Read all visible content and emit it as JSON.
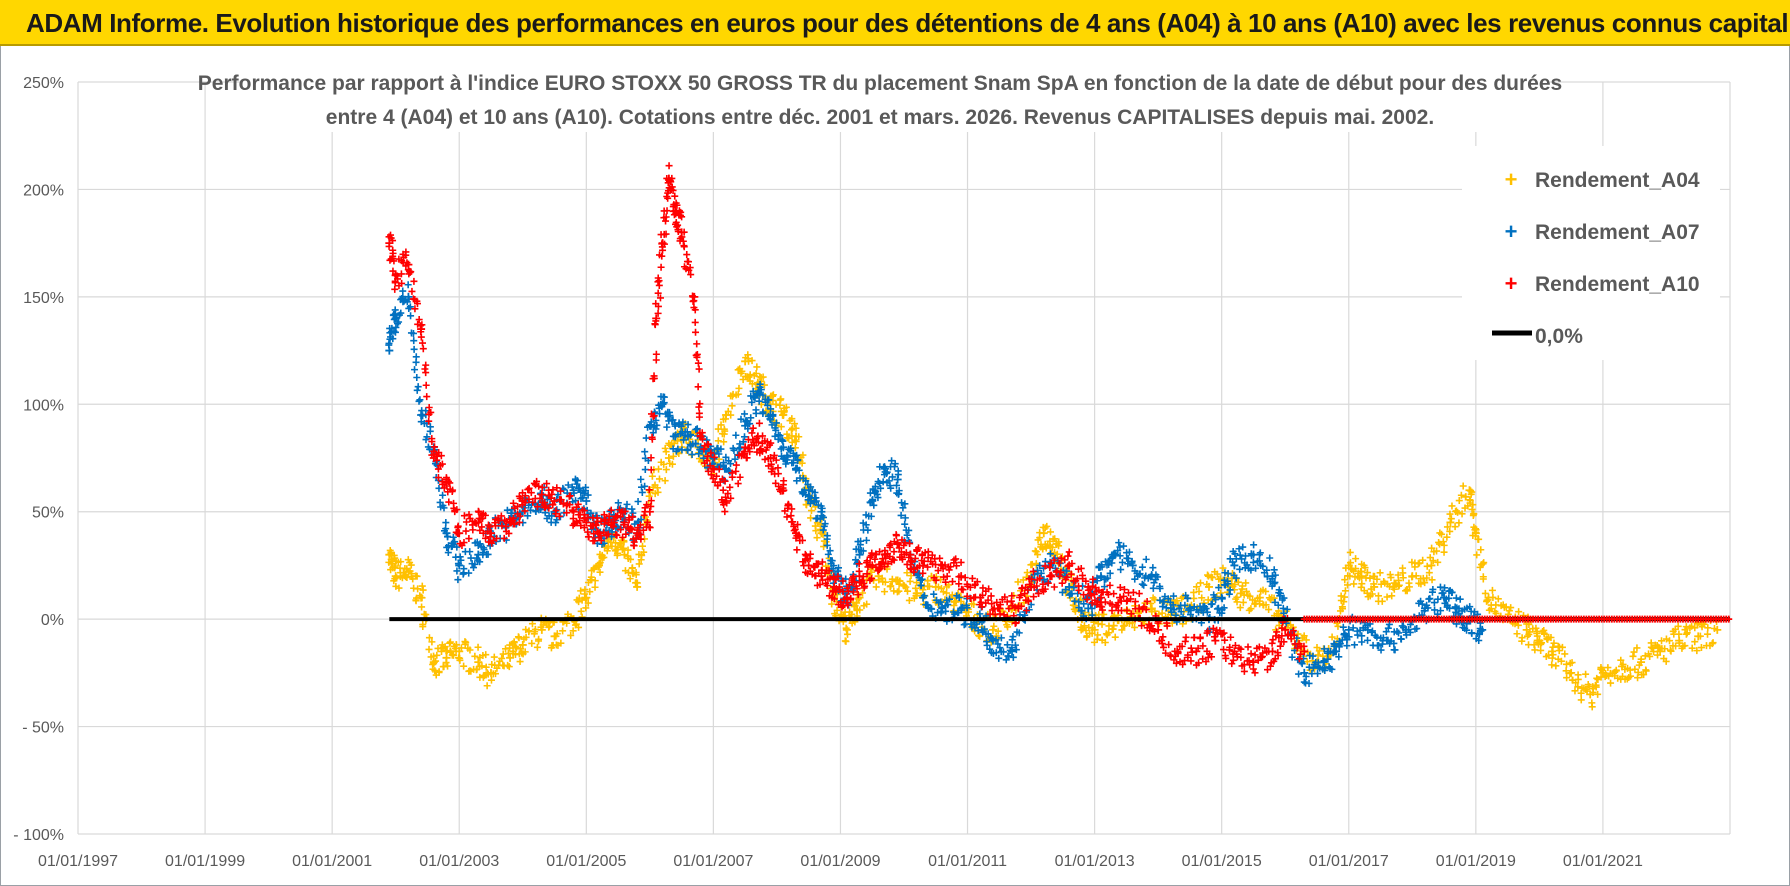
{
  "banner": {
    "title": "ADAM Informe. Evolution historique des performances en euros pour des détentions de 4 ans (A04) à 10 ans (A10) avec les revenus connus capitalisés"
  },
  "colors": {
    "banner": "#ffd700",
    "A04": "#ffc000",
    "A07": "#0070c0",
    "A10": "#ff0000",
    "zero": "#000000",
    "grid": "#d9d9d9",
    "text": "#595959"
  },
  "chart_data": {
    "type": "scatter",
    "title_lines": [
      "Performance par rapport à l'indice EURO STOXX 50 GROSS TR  du placement Snam SpA en fonction de la date de début pour des durées",
      "entre 4 (A04) et 10 ans (A10).  Cotations entre déc. 2001 et mars. 2026. Revenus CAPITALISES depuis mai. 2002."
    ],
    "xlabel": "",
    "ylabel": "",
    "xlim": [
      1997.0,
      2023.0
    ],
    "ylim": [
      -100,
      250
    ],
    "x_ticks": [
      1997,
      1999,
      2001,
      2003,
      2005,
      2007,
      2009,
      2011,
      2013,
      2015,
      2017,
      2019,
      2021
    ],
    "x_tick_labels": [
      "01/01/1997",
      "01/01/1999",
      "01/01/2001",
      "01/01/2003",
      "01/01/2005",
      "01/01/2007",
      "01/01/2009",
      "01/01/2011",
      "01/01/2013",
      "01/01/2015",
      "01/01/2017",
      "01/01/2019",
      "01/01/2021"
    ],
    "y_ticks": [
      -100,
      -50,
      0,
      50,
      100,
      150,
      200,
      250
    ],
    "y_tick_labels": [
      "- 100%",
      "- 50%",
      "0%",
      "50%",
      "100%",
      "150%",
      "200%",
      "250%"
    ],
    "grid": true,
    "legend_position": "top-right",
    "series": [
      {
        "name": "Rendement_A04",
        "marker": "+",
        "x": [
          2001.9,
          2002.0,
          2002.2,
          2002.4,
          2002.6,
          2002.8,
          2003.0,
          2003.3,
          2003.5,
          2003.8,
          2004.0,
          2004.3,
          2004.5,
          2004.8,
          2005.0,
          2005.2,
          2005.4,
          2005.6,
          2005.8,
          2006.0,
          2006.3,
          2006.5,
          2006.8,
          2007.0,
          2007.2,
          2007.5,
          2007.7,
          2007.9,
          2008.1,
          2008.3,
          2008.5,
          2008.7,
          2008.9,
          2009.1,
          2009.3,
          2009.6,
          2009.9,
          2010.2,
          2010.5,
          2010.8,
          2011.1,
          2011.4,
          2011.7,
          2012.0,
          2012.2,
          2012.4,
          2012.6,
          2012.8,
          2013.0,
          2013.3,
          2013.6,
          2013.9,
          2014.2,
          2014.5,
          2014.8,
          2015.1,
          2015.3,
          2015.6,
          2015.9,
          2016.2,
          2016.5,
          2016.8,
          2017.0,
          2017.2,
          2017.4,
          2017.7,
          2018.0,
          2018.3,
          2018.6,
          2018.9,
          2019.0,
          2019.2,
          2019.5,
          2019.8,
          2020.0,
          2020.2,
          2020.5,
          2020.8,
          2021.0,
          2021.3,
          2021.6,
          2021.9,
          2022.2,
          2022.5,
          2022.8
        ],
        "y": [
          30,
          20,
          22,
          10,
          -20,
          -18,
          -15,
          -20,
          -25,
          -18,
          -12,
          -5,
          -8,
          0,
          10,
          25,
          40,
          30,
          15,
          60,
          75,
          85,
          80,
          70,
          95,
          120,
          110,
          100,
          95,
          85,
          55,
          40,
          10,
          -5,
          10,
          20,
          18,
          12,
          15,
          8,
          0,
          -5,
          5,
          20,
          40,
          35,
          15,
          0,
          -5,
          -3,
          0,
          5,
          2,
          5,
          15,
          18,
          12,
          10,
          0,
          -10,
          -20,
          -12,
          25,
          20,
          15,
          15,
          20,
          25,
          45,
          60,
          40,
          10,
          0,
          -5,
          -10,
          -15,
          -25,
          -35,
          -25,
          -22,
          -20,
          -15,
          -10,
          -8,
          -5
        ]
      },
      {
        "name": "Rendement_A07",
        "marker": "+",
        "x": [
          2001.9,
          2002.0,
          2002.2,
          2002.4,
          2002.6,
          2002.8,
          2003.0,
          2003.3,
          2003.5,
          2003.8,
          2004.0,
          2004.3,
          2004.5,
          2004.8,
          2005.0,
          2005.2,
          2005.4,
          2005.6,
          2005.8,
          2006.0,
          2006.2,
          2006.4,
          2006.6,
          2006.8,
          2007.0,
          2007.2,
          2007.5,
          2007.7,
          2007.9,
          2008.1,
          2008.3,
          2008.5,
          2008.7,
          2008.9,
          2009.1,
          2009.3,
          2009.5,
          2009.7,
          2009.9,
          2010.1,
          2010.3,
          2010.6,
          2010.9,
          2011.2,
          2011.4,
          2011.7,
          2012.0,
          2012.3,
          2012.6,
          2012.9,
          2013.1,
          2013.3,
          2013.6,
          2013.9,
          2014.2,
          2014.5,
          2014.8,
          2015.0,
          2015.2,
          2015.5,
          2015.8,
          2016.0,
          2016.3,
          2016.6,
          2016.8,
          2017.0,
          2017.3,
          2017.6,
          2017.9,
          2018.2,
          2018.5,
          2018.7,
          2018.9,
          2019.1
        ],
        "y": [
          125,
          140,
          150,
          95,
          80,
          40,
          25,
          30,
          40,
          45,
          50,
          55,
          50,
          60,
          55,
          40,
          45,
          50,
          40,
          90,
          100,
          85,
          85,
          80,
          75,
          70,
          90,
          105,
          95,
          80,
          70,
          60,
          50,
          20,
          10,
          30,
          55,
          70,
          65,
          30,
          10,
          5,
          5,
          0,
          -10,
          -15,
          15,
          25,
          15,
          5,
          20,
          30,
          25,
          20,
          5,
          5,
          0,
          10,
          25,
          30,
          20,
          0,
          -25,
          -20,
          -15,
          -5,
          -5,
          -10,
          -5,
          5,
          10,
          5,
          0,
          -5
        ]
      },
      {
        "name": "Rendement_A10",
        "marker": "+",
        "x": [
          2001.9,
          2002.0,
          2002.2,
          2002.4,
          2002.6,
          2002.8,
          2003.0,
          2003.3,
          2003.5,
          2003.8,
          2004.0,
          2004.3,
          2004.5,
          2004.8,
          2005.0,
          2005.2,
          2005.4,
          2005.6,
          2005.8,
          2006.0,
          2006.1,
          2006.2,
          2006.3,
          2006.4,
          2006.5,
          2006.7,
          2006.8,
          2007.0,
          2007.2,
          2007.5,
          2007.7,
          2007.9,
          2008.1,
          2008.3,
          2008.5,
          2008.7,
          2008.9,
          2009.1,
          2009.3,
          2009.5,
          2009.7,
          2009.9,
          2010.1,
          2010.3,
          2010.6,
          2010.9,
          2011.2,
          2011.5,
          2011.8,
          2012.0,
          2012.3,
          2012.6,
          2012.9,
          2013.1,
          2013.4,
          2013.7,
          2014.0,
          2014.3,
          2014.6,
          2014.9,
          2015.2,
          2015.5,
          2015.8,
          2016.0,
          2016.3
        ],
        "y": [
          175,
          160,
          165,
          135,
          75,
          65,
          40,
          45,
          40,
          45,
          55,
          58,
          55,
          50,
          45,
          40,
          45,
          45,
          40,
          50,
          140,
          175,
          205,
          190,
          180,
          150,
          85,
          70,
          55,
          80,
          85,
          75,
          60,
          40,
          25,
          20,
          15,
          10,
          20,
          25,
          30,
          35,
          30,
          25,
          25,
          20,
          10,
          5,
          5,
          15,
          20,
          25,
          15,
          10,
          10,
          5,
          -5,
          -15,
          -15,
          -10,
          -15,
          -20,
          -15,
          -5,
          -15
        ]
      }
    ],
    "legend": [
      "Rendement_A04",
      "Rendement_A07",
      "Rendement_A10",
      "0,0%"
    ],
    "zero_line": {
      "label": "0,0%",
      "x_range": [
        2001.9,
        2023.0
      ],
      "y": 0
    }
  }
}
